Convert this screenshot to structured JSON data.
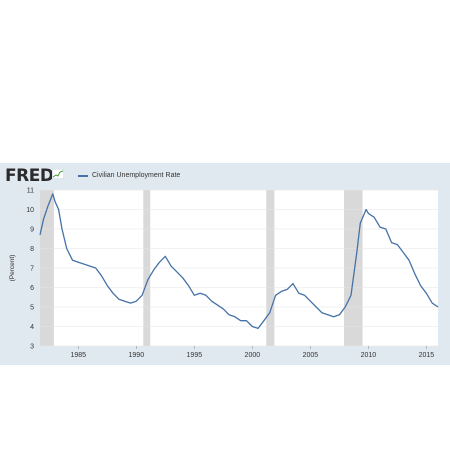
{
  "brand": {
    "logo_text": "FRED"
  },
  "colors": {
    "panel_bg": "#e1e9f0",
    "plot_bg": "#ffffff",
    "line": "#4572a7",
    "recession": "#d9d9d9",
    "grid": "#e6e6e6"
  },
  "chart_data": {
    "type": "line",
    "title": "",
    "xlabel": "",
    "ylabel": "(Percent)",
    "xlim": [
      1981.7,
      2016.0
    ],
    "ylim": [
      3,
      11
    ],
    "y_ticks": [
      "3",
      "4",
      "5",
      "6",
      "7",
      "8",
      "9",
      "10",
      "11"
    ],
    "x_ticks": [
      "1985",
      "1990",
      "1995",
      "2000",
      "2005",
      "2010",
      "2015"
    ],
    "grid": true,
    "legend": "top-left",
    "recessions": [
      [
        1981.6,
        1982.9
      ],
      [
        1990.6,
        1991.2
      ],
      [
        2001.2,
        2001.9
      ],
      [
        2007.9,
        2009.5
      ]
    ],
    "series": [
      {
        "name": "Civilian Unemployment Rate",
        "x": [
          1981.7,
          1982.0,
          1982.4,
          1982.8,
          1983.0,
          1983.3,
          1983.6,
          1984.0,
          1984.5,
          1985.0,
          1985.5,
          1986.0,
          1986.5,
          1987.0,
          1987.5,
          1988.0,
          1988.5,
          1989.0,
          1989.5,
          1990.0,
          1990.5,
          1991.0,
          1991.5,
          1992.0,
          1992.5,
          1993.0,
          1993.5,
          1994.0,
          1994.5,
          1995.0,
          1995.5,
          1996.0,
          1996.5,
          1997.0,
          1997.5,
          1998.0,
          1998.5,
          1999.0,
          1999.5,
          2000.0,
          2000.5,
          2001.0,
          2001.5,
          2002.0,
          2002.5,
          2003.0,
          2003.5,
          2004.0,
          2004.5,
          2005.0,
          2005.5,
          2006.0,
          2006.5,
          2007.0,
          2007.5,
          2008.0,
          2008.5,
          2009.0,
          2009.3,
          2009.8,
          2010.0,
          2010.5,
          2011.0,
          2011.5,
          2012.0,
          2012.5,
          2013.0,
          2013.5,
          2014.0,
          2014.5,
          2015.0,
          2015.5,
          2016.0
        ],
        "y": [
          8.7,
          9.5,
          10.2,
          10.8,
          10.4,
          10.0,
          9.0,
          8.0,
          7.4,
          7.3,
          7.2,
          7.1,
          7.0,
          6.6,
          6.1,
          5.7,
          5.4,
          5.3,
          5.2,
          5.3,
          5.6,
          6.4,
          6.9,
          7.3,
          7.6,
          7.1,
          6.8,
          6.5,
          6.1,
          5.6,
          5.7,
          5.6,
          5.3,
          5.1,
          4.9,
          4.6,
          4.5,
          4.3,
          4.3,
          4.0,
          3.9,
          4.3,
          4.7,
          5.6,
          5.8,
          5.9,
          6.2,
          5.7,
          5.6,
          5.3,
          5.0,
          4.7,
          4.6,
          4.5,
          4.6,
          5.0,
          5.6,
          7.8,
          9.3,
          10.0,
          9.8,
          9.6,
          9.1,
          9.0,
          8.3,
          8.2,
          7.8,
          7.4,
          6.7,
          6.1,
          5.7,
          5.2,
          5.0
        ]
      }
    ]
  }
}
